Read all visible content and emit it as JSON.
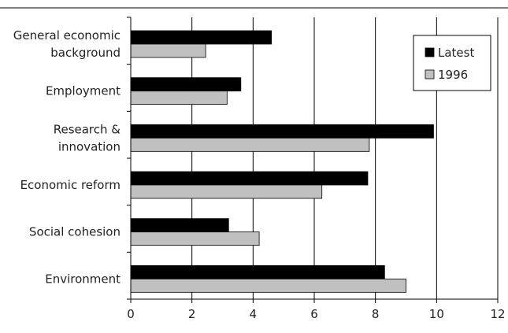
{
  "chart_data": {
    "type": "bar",
    "orientation": "horizontal",
    "title": "",
    "xlabel": "",
    "ylabel": "",
    "categories": [
      [
        "General economic",
        "background"
      ],
      [
        "Employment"
      ],
      [
        "Research &",
        "innovation"
      ],
      [
        "Economic reform"
      ],
      [
        "Social cohesion"
      ],
      [
        "Environment"
      ]
    ],
    "series": [
      {
        "name": "Latest",
        "color": "#000000",
        "values": [
          4.6,
          3.6,
          9.9,
          7.75,
          3.2,
          8.3
        ]
      },
      {
        "name": "1996",
        "color": "#c0c0c0",
        "values": [
          2.45,
          3.15,
          7.8,
          6.25,
          4.2,
          9.0
        ]
      }
    ],
    "xlim": [
      0,
      12
    ],
    "xticks": [
      0,
      2,
      4,
      6,
      8,
      10,
      12
    ],
    "grid": "vertical",
    "legend": {
      "position": "top-right"
    }
  }
}
